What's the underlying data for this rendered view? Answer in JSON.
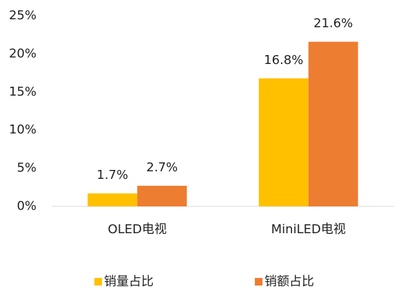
{
  "chart_data": {
    "type": "bar",
    "categories": [
      "OLED电视",
      "MiniLED电视"
    ],
    "series": [
      {
        "name": "销量占比",
        "color": "#FFC000",
        "values": [
          1.7,
          16.8
        ],
        "value_labels": [
          "1.7%",
          "16.8%"
        ]
      },
      {
        "name": "销额占比",
        "color": "#ED7D31",
        "values": [
          2.7,
          21.6
        ],
        "value_labels": [
          "2.7%",
          "21.6%"
        ]
      }
    ],
    "ylim": [
      0,
      25
    ],
    "yticks": [
      {
        "value": 0,
        "label": "0%"
      },
      {
        "value": 5,
        "label": "5%"
      },
      {
        "value": 10,
        "label": "10%"
      },
      {
        "value": 15,
        "label": "15%"
      },
      {
        "value": 20,
        "label": "20%"
      },
      {
        "value": 25,
        "label": "25%"
      }
    ],
    "grid": false,
    "legend": "bottom"
  }
}
